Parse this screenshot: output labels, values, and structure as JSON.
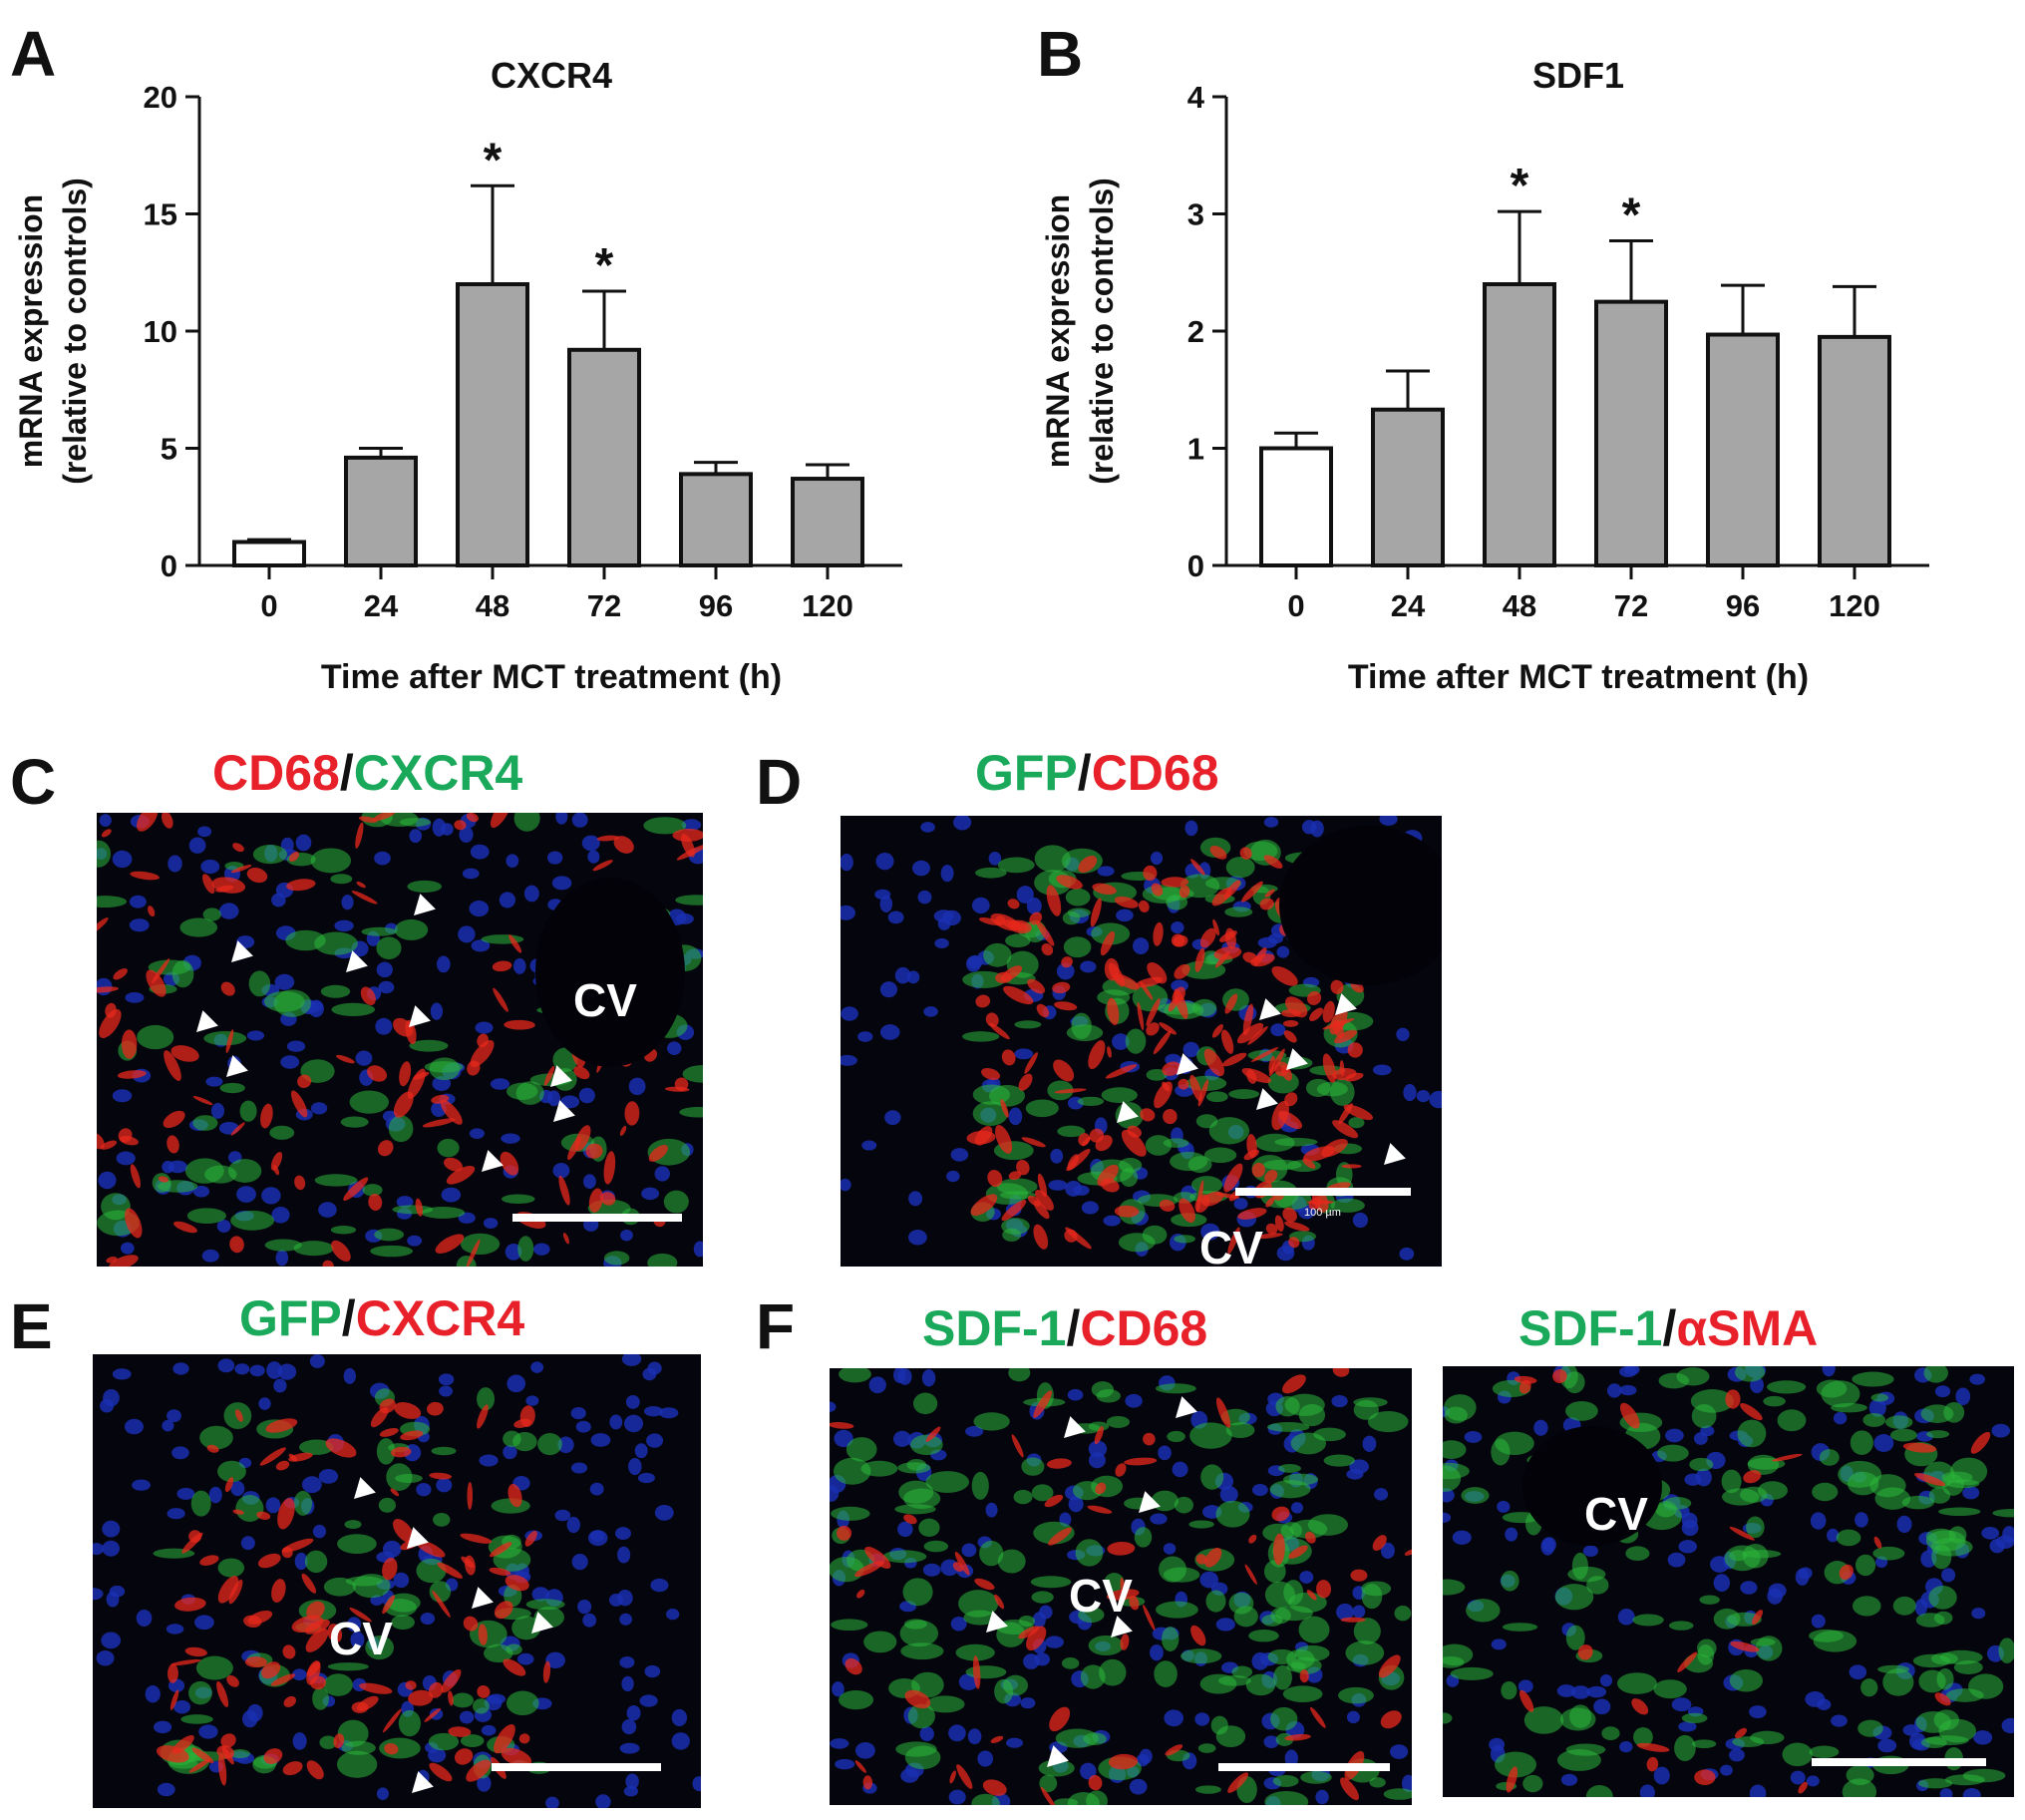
{
  "panels": {
    "A": "A",
    "B": "B",
    "C": "C",
    "D": "D",
    "E": "E",
    "F": "F"
  },
  "chart_data": [
    {
      "type": "bar",
      "title": "CXCR4",
      "xlabel": "Time after MCT treatment  (h)",
      "ylabel_line1": "mRNA expression",
      "ylabel_line2": "(relative to controls)",
      "categories": [
        "0",
        "24",
        "48",
        "72",
        "96",
        "120"
      ],
      "values": [
        1.0,
        4.6,
        12.0,
        9.2,
        3.9,
        3.7
      ],
      "errors": [
        0.1,
        0.4,
        4.2,
        2.5,
        0.5,
        0.6
      ],
      "significance": [
        "",
        "",
        "*",
        "*",
        "",
        ""
      ],
      "bar_colors": [
        "#ffffff",
        "#a6a6a6",
        "#a6a6a6",
        "#a6a6a6",
        "#a6a6a6",
        "#a6a6a6"
      ],
      "ylim": [
        0,
        20
      ],
      "yticks": [
        0,
        5,
        10,
        15,
        20
      ],
      "grid": false
    },
    {
      "type": "bar",
      "title": "SDF1",
      "xlabel": "Time after MCT treatment  (h)",
      "ylabel_line1": "mRNA expression",
      "ylabel_line2": "(relative to controls)",
      "categories": [
        "0",
        "24",
        "48",
        "72",
        "96",
        "120"
      ],
      "values": [
        1.0,
        1.33,
        2.4,
        2.25,
        1.97,
        1.95
      ],
      "errors": [
        0.13,
        0.33,
        0.62,
        0.52,
        0.42,
        0.43
      ],
      "significance": [
        "",
        "",
        "*",
        "*",
        "",
        ""
      ],
      "bar_colors": [
        "#ffffff",
        "#a6a6a6",
        "#a6a6a6",
        "#a6a6a6",
        "#a6a6a6",
        "#a6a6a6"
      ],
      "ylim": [
        0,
        4
      ],
      "yticks": [
        0,
        1,
        2,
        3,
        4
      ],
      "grid": false
    }
  ],
  "micrographs": {
    "C": {
      "title_part1": "CD68",
      "title_sep": "/",
      "title_part2": "CXCR4",
      "cv": "CV"
    },
    "D": {
      "title_part1": "GFP",
      "title_sep": "/",
      "title_part2": "CD68",
      "cv": "CV",
      "scale_text": "100 µm"
    },
    "E": {
      "title_part1": "GFP",
      "title_sep": "/",
      "title_part2": "CXCR4",
      "cv": "CV"
    },
    "F1": {
      "title_part1": "SDF-1",
      "title_sep": "/",
      "title_part2": "CD68",
      "cv": "CV"
    },
    "F2": {
      "title_part1": "SDF-1",
      "title_sep": "/",
      "title_part2": "αSMA",
      "cv": "CV"
    }
  },
  "colors": {
    "green_label": "#1aa85a",
    "red_label": "#e8202a",
    "dark": "#111111"
  }
}
